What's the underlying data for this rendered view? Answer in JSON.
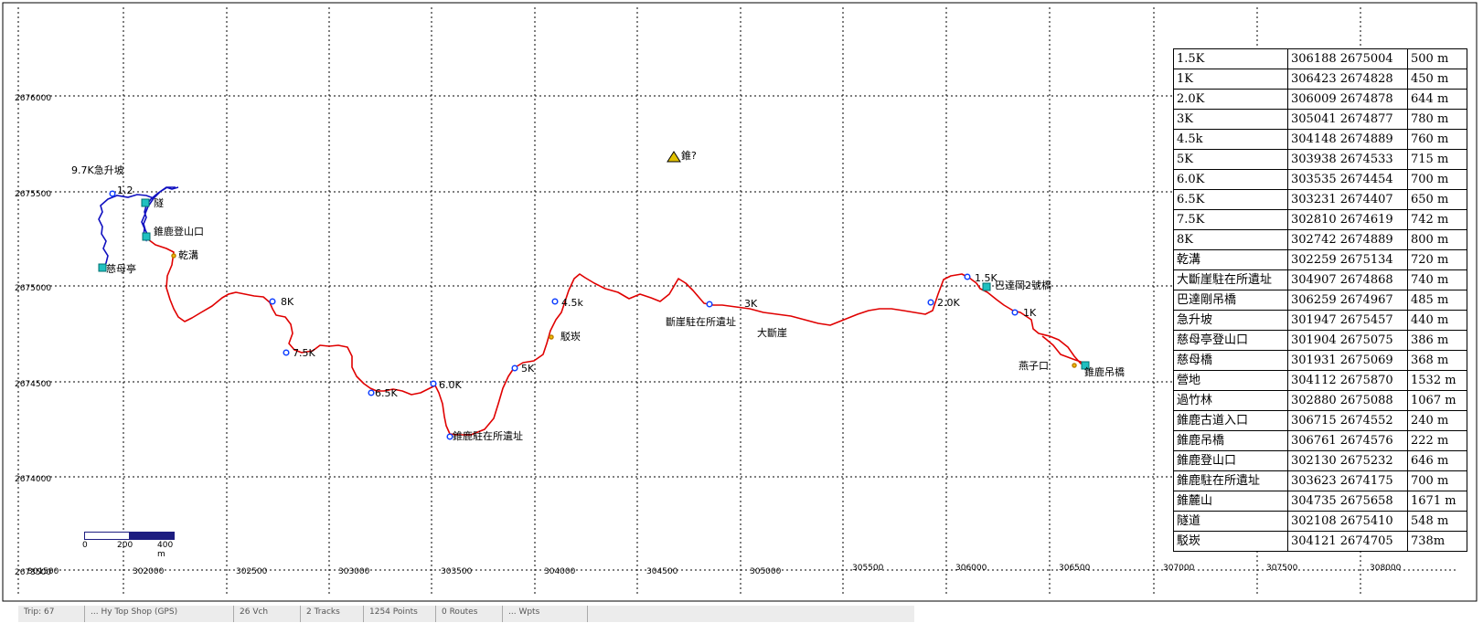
{
  "map": {
    "x_ticks": [
      "301500",
      "302000",
      "302500",
      "303000",
      "303500",
      "304000",
      "304500",
      "305000",
      "305500",
      "306000",
      "306500",
      "307000",
      "307500",
      "308000"
    ],
    "y_ticks": [
      "2676000",
      "2675500",
      "2675000",
      "2674500",
      "2674000",
      "2673500"
    ],
    "colors": {
      "track_red": "#e00000",
      "track_blue": "#1010c0",
      "grid": "#000000",
      "waypoint": "#1040ff"
    },
    "waypoints": [
      {
        "label": "9.7K急升坡"
      },
      {
        "label": "1.2"
      },
      {
        "label": "隧"
      },
      {
        "label": "錐鹿登山口"
      },
      {
        "label": "乾溝"
      },
      {
        "label": "慈母亭"
      },
      {
        "label": "8K"
      },
      {
        "label": "7.5K"
      },
      {
        "label": "6.5K"
      },
      {
        "label": "6.0K"
      },
      {
        "label": "錐鹿駐在所遺址"
      },
      {
        "label": "5K"
      },
      {
        "label": "駁崁"
      },
      {
        "label": "4.5k"
      },
      {
        "label": "斷崖駐在所遺址"
      },
      {
        "label": "3K"
      },
      {
        "label": "大斷崖"
      },
      {
        "label": "錐?"
      },
      {
        "label": "2.0K"
      },
      {
        "label": "1.5K"
      },
      {
        "label": "巴達岡2號橋"
      },
      {
        "label": "1K"
      },
      {
        "label": "燕子口"
      },
      {
        "label": "錐鹿吊橋"
      }
    ],
    "scale": {
      "labels": [
        "0",
        "200",
        "400 m"
      ]
    }
  },
  "waypoint_table": [
    [
      "1.5K",
      "306188 2675004",
      "500 m"
    ],
    [
      "1K",
      "306423 2674828",
      "450 m"
    ],
    [
      "2.0K",
      "306009 2674878",
      "644 m"
    ],
    [
      "3K",
      "305041 2674877",
      "780 m"
    ],
    [
      "4.5k",
      "304148 2674889",
      "760 m"
    ],
    [
      "5K",
      "303938 2674533",
      "715 m"
    ],
    [
      "6.0K",
      "303535 2674454",
      "700 m"
    ],
    [
      "6.5K",
      "303231 2674407",
      "650 m"
    ],
    [
      "7.5K",
      "302810 2674619",
      "742 m"
    ],
    [
      "8K",
      "302742 2674889",
      "800 m"
    ],
    [
      "乾溝",
      "302259 2675134",
      "720 m"
    ],
    [
      "大斷崖駐在所遺址",
      "304907 2674868",
      "740 m"
    ],
    [
      "巴達剛吊橋",
      "306259 2674967",
      "485 m"
    ],
    [
      "急升坡",
      "301947 2675457",
      "440 m"
    ],
    [
      "慈母亭登山口",
      "301904 2675075",
      "386 m"
    ],
    [
      "慈母橋",
      "301931 2675069",
      "368 m"
    ],
    [
      "營地",
      "304112 2675870",
      "1532 m"
    ],
    [
      "過竹林",
      "302880 2675088",
      "1067 m"
    ],
    [
      "錐鹿古道入口",
      "306715 2674552",
      "240 m"
    ],
    [
      "錐鹿吊橋",
      "306761 2674576",
      "222 m"
    ],
    [
      "錐鹿登山口",
      "302130 2675232",
      "646 m"
    ],
    [
      "錐鹿駐在所遺址",
      "303623 2674175",
      "700 m"
    ],
    [
      "錐麓山",
      "304735 2675658",
      "1671 m"
    ],
    [
      "隧道",
      "302108 2675410",
      "548 m"
    ],
    [
      "駁崁",
      "304121 2674705",
      "738m"
    ]
  ],
  "status_bar": [
    "Trip: 67",
    "... Hy Top Shop (GPS)",
    "26 Vch",
    "2 Tracks",
    "1254 Points",
    "0 Routes",
    "... Wpts"
  ]
}
